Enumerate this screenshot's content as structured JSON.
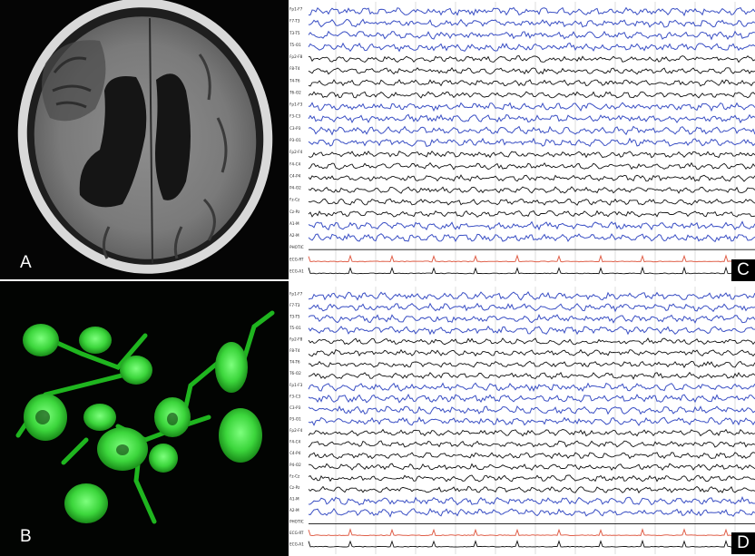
{
  "figure": {
    "panels": [
      {
        "id": "A",
        "label": "A",
        "content": "axial brain MRI"
      },
      {
        "id": "B",
        "label": "B",
        "content": "green fluorescence microscopy of cells"
      },
      {
        "id": "C",
        "label": "C",
        "content": "EEG recording"
      },
      {
        "id": "D",
        "label": "D",
        "content": "EEG recording"
      }
    ],
    "eeg_channels_c": [
      "Fp1-F7",
      "F7-T3",
      "T3-T5",
      "T5-O1",
      "Fp2-F8",
      "F8-T4",
      "T4-T6",
      "T6-O2",
      "Fp1-F3",
      "F3-C3",
      "C3-P3",
      "P3-O1",
      "Fp2-F4",
      "F4-C4",
      "C4-P4",
      "P4-O2",
      "Fz-Cz",
      "Cz-Pz",
      "A1-M",
      "A2-M",
      "PHOTIC",
      "ECG-RT",
      "ECG-A1"
    ],
    "eeg_channels_d": [
      "Fp1-F7",
      "F7-T3",
      "T3-T5",
      "T5-O1",
      "Fp2-F8",
      "F8-T4",
      "T4-T6",
      "T6-O2",
      "Fp1-F3",
      "F3-C3",
      "C3-P3",
      "P3-O1",
      "Fp2-F4",
      "F4-C4",
      "C4-P4",
      "P4-O2",
      "Fz-Cz",
      "Cz-Pz",
      "A1-M",
      "A2-M",
      "PHOTIC",
      "ECG-RT",
      "ECG-A1"
    ],
    "trace_colors": {
      "blue": "#3a4fc4",
      "black": "#111111",
      "ecg": "#e0604a"
    }
  }
}
